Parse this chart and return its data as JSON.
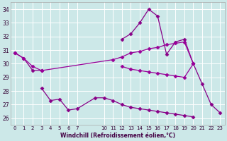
{
  "bg_color": "#cce8e8",
  "line_color": "#990099",
  "marker": "D",
  "markersize": 2.5,
  "linewidth": 0.9,
  "xlabel": "Windchill (Refroidissement éolien,°C)",
  "ylim": [
    25.5,
    34.5
  ],
  "yticks": [
    26,
    27,
    28,
    29,
    30,
    31,
    32,
    33,
    34
  ],
  "xlim": [
    -0.5,
    23.5
  ],
  "xtick_labels": [
    "0",
    "1",
    "2",
    "3",
    "4",
    "5",
    "6",
    "7",
    "",
    "10",
    "11",
    "12",
    "13",
    "14",
    "15",
    "16",
    "17",
    "18",
    "19",
    "20",
    "21",
    "22",
    "23"
  ],
  "xtick_pos": [
    0,
    1,
    2,
    3,
    4,
    5,
    6,
    7,
    8,
    9,
    10,
    11,
    12,
    13,
    14,
    15,
    16,
    17,
    18,
    19,
    20,
    21,
    22
  ],
  "series": [
    {
      "segments": [
        {
          "x": [
            0,
            1,
            2,
            3
          ],
          "y": [
            30.8,
            30.4,
            29.5,
            29.5
          ]
        },
        {
          "x": [
            12,
            13,
            14,
            15,
            16,
            17,
            18,
            19,
            20,
            21,
            22,
            23
          ],
          "y": [
            31.8,
            32.2,
            33.0,
            34.0,
            33.5,
            30.7,
            31.6,
            31.8,
            30.0,
            28.5,
            27.0,
            26.4
          ]
        }
      ],
      "color": "#880088"
    },
    {
      "segments": [
        {
          "x": [
            0,
            1,
            2,
            3,
            11,
            12,
            13,
            14,
            15,
            16,
            17,
            18,
            19,
            20
          ],
          "y": [
            30.8,
            30.4,
            29.8,
            29.5,
            30.3,
            30.5,
            30.8,
            30.9,
            31.1,
            31.2,
            31.4,
            31.5,
            31.6,
            30.0
          ]
        }
      ],
      "color": "#990099"
    },
    {
      "segments": [
        {
          "x": [
            3,
            4,
            5,
            6,
            7,
            9,
            10,
            11,
            12,
            13,
            14,
            15,
            16,
            17,
            18,
            19,
            20
          ],
          "y": [
            28.2,
            27.3,
            27.4,
            26.6,
            26.7,
            27.5,
            27.5,
            27.3,
            27.0,
            26.8,
            26.7,
            26.6,
            26.5,
            26.4,
            26.3,
            26.2,
            26.1
          ]
        }
      ],
      "color": "#880088"
    },
    {
      "segments": [
        {
          "x": [
            12,
            13,
            14,
            15,
            16,
            17,
            18,
            19,
            20
          ],
          "y": [
            29.8,
            29.6,
            29.5,
            29.4,
            29.3,
            29.2,
            29.1,
            29.0,
            30.0
          ]
        }
      ],
      "color": "#990099"
    }
  ]
}
